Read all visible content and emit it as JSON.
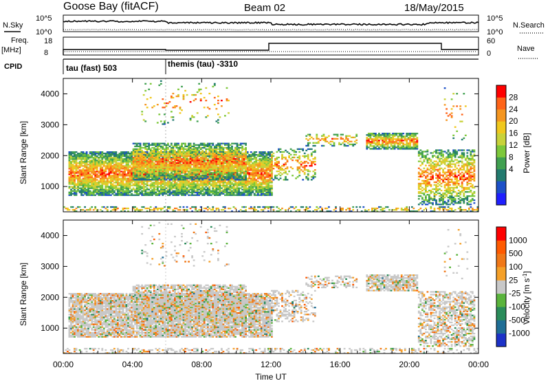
{
  "header": {
    "station": "Goose Bay (fitACF)",
    "beam": "Beam 02",
    "date": "18/May/2015"
  },
  "top_panels": {
    "nsky_label": "N.Sky",
    "nsky_ticks": [
      "10^5",
      "10^0"
    ],
    "nsearch_label": "N.Search",
    "nsearch_ticks": [
      "10^5",
      "10^0"
    ],
    "freq_label": "Freq.",
    "freq_unit": "[MHz]",
    "freq_ticks": [
      "18",
      "8"
    ],
    "nave_label": "Nave",
    "nave_ticks": [
      "60",
      "0"
    ],
    "cpid_label": "CPID",
    "cpid_segments": [
      {
        "label": "tau (fast) 503",
        "start_hour": 0
      },
      {
        "label": "themis (tau) -3310",
        "start_hour": 6
      }
    ]
  },
  "chart_data": [
    {
      "type": "heatmap",
      "name": "power",
      "xlabel": "Time UT",
      "ylabel": "Slant Range [km]",
      "xlim": [
        0,
        24
      ],
      "ylim": [
        180,
        4500
      ],
      "x_ticks": [
        0,
        4,
        8,
        12,
        16,
        20,
        24
      ],
      "x_tick_labels": [
        "00:00",
        "04:00",
        "08:00",
        "12:00",
        "16:00",
        "20:00",
        "00:00"
      ],
      "y_ticks": [
        1000,
        2000,
        3000,
        4000
      ],
      "colorbar": {
        "label": "Power [dB]",
        "ticks": [
          "28",
          "24",
          "20",
          "16",
          "12",
          "8",
          "4"
        ],
        "colors": [
          "#1f1fff",
          "#1c50c8",
          "#227a6e",
          "#40a050",
          "#7dc83a",
          "#c8d23a",
          "#f0c81e",
          "#f59620",
          "#ff6418",
          "#ff0000"
        ]
      }
    },
    {
      "type": "heatmap",
      "name": "velocity",
      "xlabel": "Time UT",
      "ylabel": "Slant Range [km]",
      "xlim": [
        0,
        24
      ],
      "ylim": [
        180,
        4500
      ],
      "x_ticks": [
        0,
        4,
        8,
        12,
        16,
        20,
        24
      ],
      "x_tick_labels": [
        "00:00",
        "04:00",
        "08:00",
        "12:00",
        "16:00",
        "20:00",
        "00:00"
      ],
      "y_ticks": [
        1000,
        2000,
        3000,
        4000
      ],
      "colorbar": {
        "label": "Velocity [m s",
        "label_superscript": "-1",
        "label_end": "]",
        "ticks": [
          "1000",
          "500",
          "100",
          "25",
          "-25",
          "-100",
          "-500",
          "-1000"
        ],
        "colors": [
          "#1c32c8",
          "#1f6e96",
          "#2a8c5a",
          "#5ab43c",
          "#c8c8c8",
          "#f5a028",
          "#f07818",
          "#ff5a00",
          "#ff0000"
        ]
      }
    }
  ],
  "colors": {
    "ground_scatter": "#c8c8c8",
    "frame": "#000000"
  }
}
